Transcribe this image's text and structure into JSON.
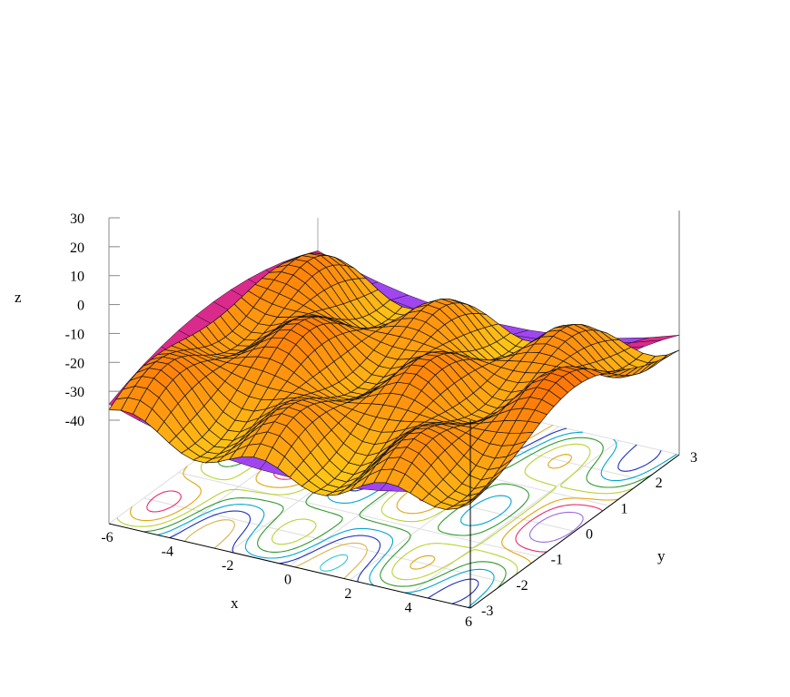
{
  "chart_data": {
    "type": "surface3d",
    "title": "",
    "xlabel": "x",
    "ylabel": "y",
    "zlabel": "z",
    "xlim": [
      -6,
      6
    ],
    "ylim": [
      -3,
      3
    ],
    "zlim": [
      -40,
      30
    ],
    "x_ticks": [
      "-6",
      "-4",
      "-2",
      "0",
      "2",
      "4",
      "6"
    ],
    "y_ticks": [
      "-3",
      "-2",
      "-1",
      "0",
      "1",
      "2",
      "3"
    ],
    "z_ticks": [
      "30",
      "20",
      "10",
      "0",
      "-10",
      "-20",
      "-30",
      "-40"
    ],
    "surfaces": [
      {
        "role": "wavy mesh surface",
        "grid": {
          "nx": 31,
          "ny": 31
        },
        "colors": {
          "low": "#ffe61a",
          "mid": "#ff9a10",
          "high": "#ff5a00",
          "mesh": "#141414"
        }
      },
      {
        "role": "saddle surface",
        "colors": {
          "low": "#a23cff",
          "high": "#e0187a"
        }
      }
    ],
    "base_contours": {
      "placement": "z = -40 plane",
      "colors": [
        "#1d2fbf",
        "#00a6cf",
        "#2e9a2e",
        "#b9d232",
        "#e0a50d",
        "#ea2a6a",
        "#9b6be0",
        "#31c7ce",
        "#d9b24a"
      ]
    },
    "grid": true,
    "legend": "none"
  }
}
